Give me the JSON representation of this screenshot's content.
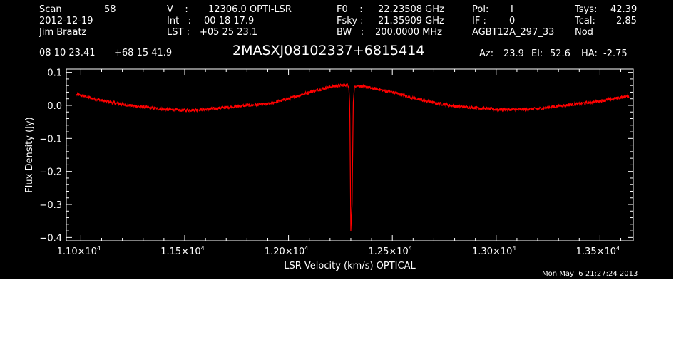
{
  "header": {
    "scan_label": "Scan",
    "scan_value": "58",
    "date": "2012-12-19",
    "observer": "Jim Braatz",
    "v_label": "V    :",
    "v_value": "12306.0 OPTI-LSR",
    "int_label": "Int   :",
    "int_value": "00 18 17.9",
    "lst_label": "LST :",
    "lst_value": "+05 25 23.1",
    "f0_label": "F0    :",
    "f0_value": "22.23508 GHz",
    "fsky_label": "Fsky :",
    "fsky_value": "21.35909 GHz",
    "bw_label": "BW   :",
    "bw_value": "200.0000 MHz",
    "pol_label": "Pol:",
    "pol_value": "I",
    "if_label": "IF :",
    "if_value": "0",
    "project": "AGBT12A_297_33",
    "tsys_label": "Tsys:",
    "tsys_value": "42.39",
    "tcal_label": "Tcal:",
    "tcal_value": "2.85",
    "proc": "Nod",
    "ra": "08 10 23.41",
    "dec": "+68 15 41.9",
    "source": "2MASXJ08102337+6815414",
    "az_label": "Az:",
    "az_value": "23.9",
    "el_label": "El:",
    "el_value": "52.6",
    "ha_label": "HA:",
    "ha_value": "-2.75"
  },
  "plot_date": "Mon May  6 21:27:24 2013",
  "colors": {
    "background": "#000000",
    "axes": "#ffffff",
    "trace": "#ff0000"
  },
  "chart_data": {
    "type": "line",
    "title": "",
    "xlabel": "LSR Velocity (km/s) OPTICAL",
    "ylabel": "Flux Density (Jy)",
    "xlim": [
      10930,
      13660
    ],
    "ylim": [
      -0.41,
      0.11
    ],
    "x_ticks": [
      11000,
      11500,
      12000,
      12500,
      13000,
      13500
    ],
    "x_tick_labels": [
      {
        "mantissa": "1.10×10",
        "exp": "4"
      },
      {
        "mantissa": "1.15×10",
        "exp": "4"
      },
      {
        "mantissa": "1.20×10",
        "exp": "4"
      },
      {
        "mantissa": "1.25×10",
        "exp": "4"
      },
      {
        "mantissa": "1.30×10",
        "exp": "4"
      },
      {
        "mantissa": "1.35×10",
        "exp": "4"
      }
    ],
    "y_ticks": [
      0.1,
      0.0,
      -0.1,
      -0.2,
      -0.3,
      -0.4
    ],
    "y_tick_labels": [
      "0.1",
      "0.0",
      "−0.1",
      "−0.2",
      "−0.3",
      "−0.4"
    ],
    "grid": false,
    "series": [
      {
        "x": [
          10980,
          11100,
          11200,
          11300,
          11400,
          11500,
          11600,
          11700,
          11800,
          11900,
          12000,
          12100,
          12150,
          12200,
          12250,
          12280,
          12290,
          12295,
          12300,
          12306,
          12312,
          12318,
          12330,
          12400,
          12500,
          12600,
          12700,
          12800,
          12900,
          13000,
          13100,
          13200,
          13300,
          13400,
          13500,
          13600,
          13640
        ],
        "values": [
          0.033,
          0.015,
          0.003,
          -0.005,
          -0.012,
          -0.015,
          -0.012,
          -0.006,
          0.0,
          0.004,
          0.02,
          0.04,
          0.048,
          0.056,
          0.06,
          0.062,
          0.058,
          0.0,
          -0.38,
          -0.3,
          0.01,
          0.058,
          0.06,
          0.052,
          0.04,
          0.022,
          0.008,
          -0.002,
          -0.007,
          -0.012,
          -0.013,
          -0.01,
          -0.002,
          0.005,
          0.013,
          0.024,
          0.028
        ]
      }
    ]
  }
}
